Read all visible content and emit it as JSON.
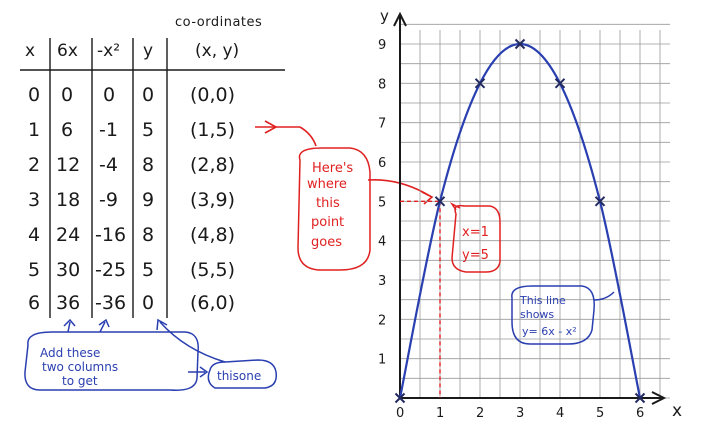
{
  "table": {
    "coordinates_title": "co-ordinates",
    "headers": [
      "x",
      "6x",
      "-x²",
      "y",
      "(x, y)"
    ],
    "rows": [
      [
        "0",
        "0",
        "0",
        "0",
        "(0,0)"
      ],
      [
        "1",
        "6",
        "-1",
        "5",
        "(1,5)"
      ],
      [
        "2",
        "12",
        "-4",
        "8",
        "(2,8)"
      ],
      [
        "3",
        "18",
        "-9",
        "9",
        "(3,9)"
      ],
      [
        "4",
        "24",
        "-16",
        "8",
        "(4,8)"
      ],
      [
        "5",
        "30",
        "-25",
        "5",
        "(5,5)"
      ],
      [
        "6",
        "36",
        "-36",
        "0",
        "(6,0)"
      ]
    ]
  },
  "annotations": {
    "add_columns": [
      "Add these",
      "two columns",
      "to get"
    ],
    "this_one": "thisone",
    "heres_where": [
      "Here's",
      "where",
      "this",
      "point",
      "goes"
    ],
    "point_label": [
      "x=1",
      "y=5"
    ],
    "line_shows": [
      "This line",
      "shows",
      "y= 6x - x²"
    ]
  },
  "colors": {
    "ink": "#1a1a1a",
    "grid": "#9a9a9a",
    "curve": "#2a3fb0",
    "red": "#e02020",
    "blue": "#2a3fb0"
  },
  "chart_data": {
    "type": "line",
    "xlabel": "x",
    "ylabel": "y",
    "xlim": [
      0,
      6
    ],
    "ylim": [
      0,
      9
    ],
    "x_ticks": [
      "0",
      "1",
      "2",
      "3",
      "4",
      "5",
      "6"
    ],
    "y_ticks": [
      "1",
      "2",
      "3",
      "4",
      "5",
      "6",
      "7",
      "8",
      "9"
    ],
    "grid": true,
    "series": [
      {
        "x": [
          0,
          1,
          2,
          3,
          4,
          5,
          6
        ],
        "y": [
          0,
          5,
          8,
          9,
          8,
          5,
          0
        ]
      }
    ],
    "highlight_point": {
      "x": 1,
      "y": 5
    }
  }
}
